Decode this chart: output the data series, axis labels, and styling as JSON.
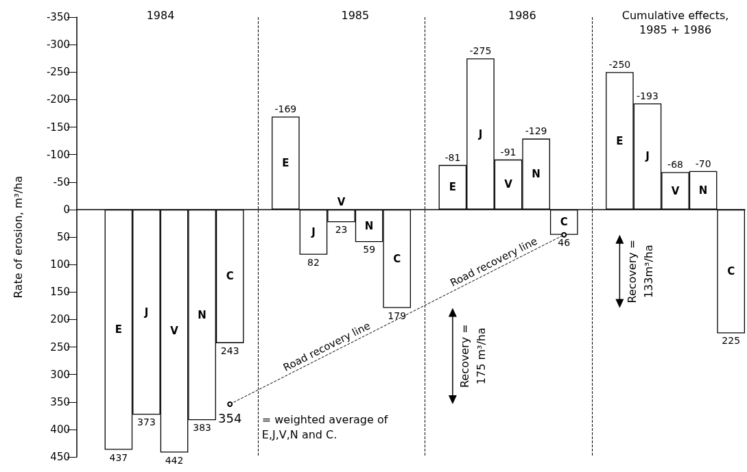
{
  "chart_data": {
    "type": "bar",
    "ylabel": "Rate of erosion, m³/ha",
    "annotations": [
      "1984",
      "1985",
      "1986",
      "Cumulative effects,\n1985 + 1986",
      "= weighted average of\nE,J,V,N and C.",
      "Recovery =\n175 m³/ha",
      "Recovery =\n133m³/ha"
    ],
    "categories": [
      null,
      null,
      null,
      null,
      null,
      null,
      null,
      null,
      null,
      null,
      null,
      null,
      null,
      null,
      null,
      null,
      null,
      null,
      null,
      null,
      null,
      null,
      null,
      null
    ],
    "ylim": [
      450,
      -350
    ],
    "yticks": [
      -350,
      -300,
      -250,
      -200,
      -150,
      -100,
      -50,
      0,
      50,
      100,
      150,
      200,
      250,
      300,
      350,
      400,
      450
    ],
    "tick_labels": "y",
    "grid": "x",
    "legend": false,
    "data_labels": true,
    "series": [
      {
        "name": "E",
        "color": "#ffffff",
        "values": [
          null,
          437,
          null,
          null,
          null,
          null,
          null,
          -169,
          null,
          null,
          null,
          null,
          null,
          -81,
          null,
          null,
          null,
          null,
          null,
          -250,
          null,
          null,
          null,
          null
        ]
      },
      {
        "name": "J",
        "color": "#ffffff",
        "values": [
          null,
          null,
          373,
          null,
          null,
          null,
          null,
          null,
          82,
          null,
          null,
          null,
          null,
          null,
          -275,
          null,
          null,
          null,
          null,
          null,
          -193,
          null,
          null,
          null
        ]
      },
      {
        "name": "V",
        "color": "#ffffff",
        "values": [
          null,
          null,
          null,
          442,
          null,
          null,
          null,
          null,
          null,
          23,
          null,
          null,
          null,
          null,
          null,
          -91,
          null,
          null,
          null,
          null,
          null,
          -68,
          null,
          null
        ]
      },
      {
        "name": "N",
        "color": "#ffffff",
        "values": [
          null,
          null,
          null,
          null,
          383,
          null,
          null,
          null,
          null,
          null,
          59,
          null,
          null,
          null,
          null,
          null,
          -129,
          null,
          null,
          null,
          null,
          null,
          -70,
          null
        ]
      },
      {
        "name": "C",
        "color": "#ffffff",
        "values": [
          null,
          null,
          null,
          null,
          null,
          243,
          null,
          null,
          null,
          null,
          null,
          179,
          null,
          null,
          null,
          null,
          null,
          46,
          null,
          null,
          null,
          null,
          null,
          225
        ]
      },
      {
        "name": "Road recovery line",
        "type": "line",
        "color": "#000000",
        "values": [
          null,
          null,
          null,
          null,
          null,
          354,
          null,
          null,
          null,
          null,
          null,
          null,
          null,
          null,
          null,
          null,
          null,
          46,
          null,
          null,
          null,
          null,
          null,
          null
        ],
        "value_labels": [
          null,
          null,
          null,
          null,
          null,
          "354",
          null,
          null,
          null,
          null,
          null,
          null,
          null,
          null,
          null,
          null,
          null,
          null,
          null,
          null,
          null,
          null,
          null,
          null
        ],
        "marker": "circle",
        "line_style": "dashed"
      }
    ]
  }
}
